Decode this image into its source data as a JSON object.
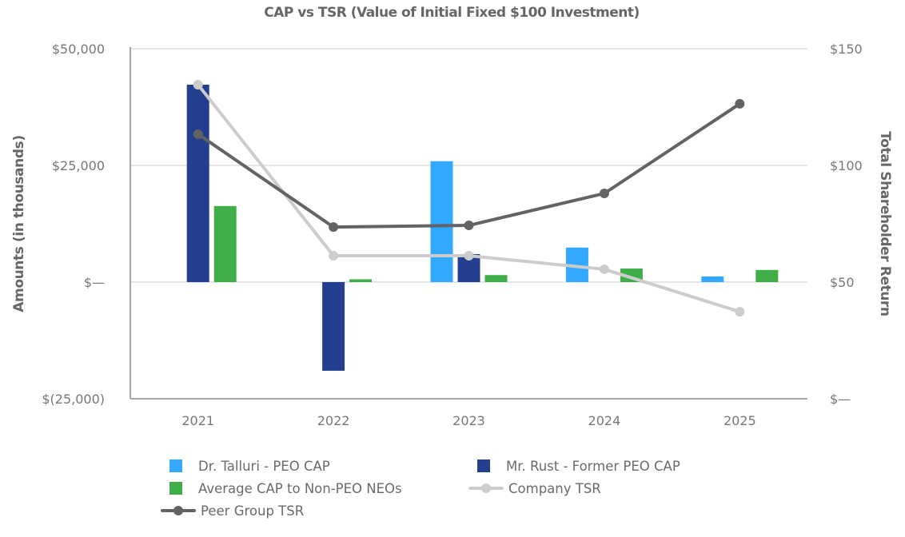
{
  "chart_data": {
    "type": "bar+line",
    "title": "CAP vs TSR (Value of Initial Fixed $100 Investment)",
    "categories": [
      "2021",
      "2022",
      "2023",
      "2024",
      "2025"
    ],
    "left_axis": {
      "label": "Amounts (in thousands)",
      "range": [
        -25000,
        50000
      ],
      "ticks": [
        {
          "value": 50000,
          "label": "$50,000"
        },
        {
          "value": 25000,
          "label": "$25,000"
        },
        {
          "value": 0,
          "label": "$—"
        },
        {
          "value": -25000,
          "label": "$(25,000)"
        }
      ],
      "grid": true
    },
    "right_axis": {
      "label": "Total Shareholder Return",
      "range": [
        0,
        150
      ],
      "ticks": [
        {
          "value": 150,
          "label": "$150"
        },
        {
          "value": 100,
          "label": "$100"
        },
        {
          "value": 50,
          "label": "$50"
        },
        {
          "value": 0,
          "label": "$—"
        }
      ]
    },
    "bar_series": [
      {
        "name": "Dr. Talluri - PEO CAP",
        "color": "#33A8FF",
        "values": [
          null,
          null,
          25900,
          7400,
          1200
        ]
      },
      {
        "name": "Mr. Rust - Former PEO CAP",
        "color": "#243F8F",
        "values": [
          42300,
          -19000,
          6000,
          null,
          null
        ]
      },
      {
        "name": "Average CAP to Non-PEO NEOs",
        "color": "#3FAE49",
        "values": [
          16300,
          600,
          1500,
          2900,
          2600
        ]
      }
    ],
    "line_series": [
      {
        "name": "Company TSR",
        "color": "#CCCCCC",
        "axis": "right",
        "values": [
          134.6,
          61.3,
          61.3,
          55.5,
          37.3
        ]
      },
      {
        "name": "Peer Group TSR",
        "color": "#636363",
        "axis": "right",
        "values": [
          113.4,
          73.6,
          74.3,
          88.0,
          126.4
        ]
      }
    ],
    "legend": {
      "placement": "bottom",
      "items": [
        {
          "label": "Dr. Talluri - PEO CAP",
          "kind": "bar",
          "color": "#33A8FF"
        },
        {
          "label": "Mr. Rust - Former PEO CAP",
          "kind": "bar",
          "color": "#243F8F"
        },
        {
          "label": "Average CAP to Non-PEO NEOs",
          "kind": "bar",
          "color": "#3FAE49"
        },
        {
          "label": "Company TSR",
          "kind": "line",
          "color": "#CCCCCC"
        },
        {
          "label": "Peer Group TSR",
          "kind": "line",
          "color": "#636363"
        }
      ]
    }
  }
}
